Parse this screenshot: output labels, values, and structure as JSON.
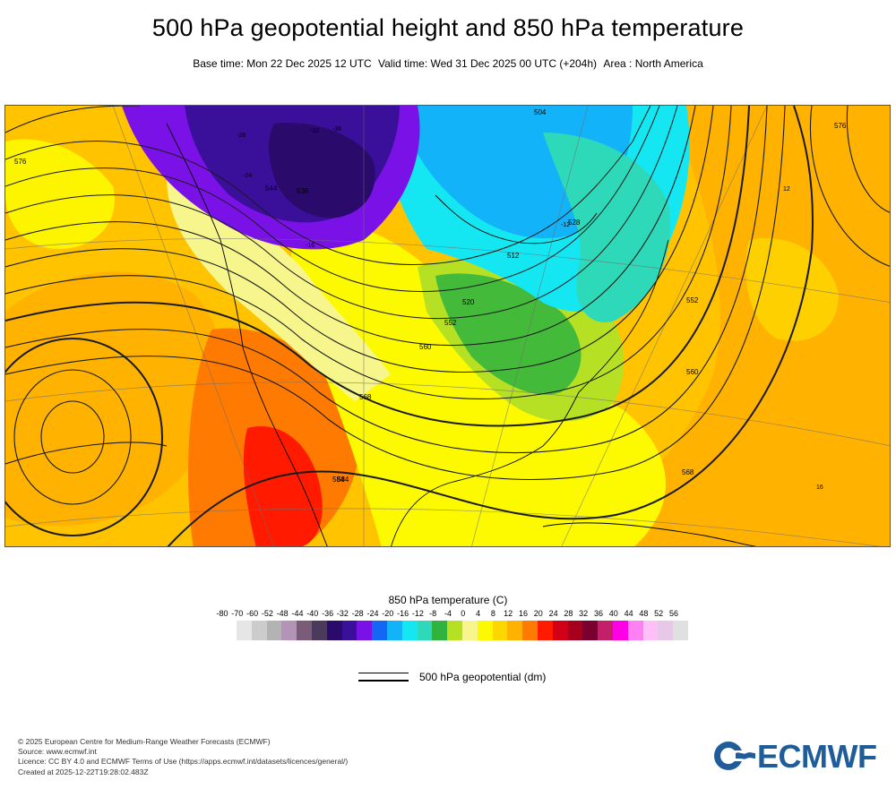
{
  "header": {
    "title": "500 hPa geopotential height and 850 hPa temperature",
    "base_time": "Base time: Mon 22 Dec 2025 12 UTC",
    "valid_time": "Valid time: Wed 31 Dec 2025 00 UTC (+204h)",
    "area": "Area : North America"
  },
  "legend": {
    "title": "850 hPa temperature (C)",
    "ticks": [
      "-80",
      "-70",
      "-60",
      "-52",
      "-48",
      "-44",
      "-40",
      "-36",
      "-32",
      "-28",
      "-24",
      "-20",
      "-16",
      "-12",
      "-8",
      "-4",
      "0",
      "4",
      "8",
      "12",
      "16",
      "20",
      "24",
      "28",
      "32",
      "36",
      "40",
      "44",
      "48",
      "52",
      "56"
    ],
    "colors": [
      "#e6e6e6",
      "#cccccc",
      "#b3b3b3",
      "#b294b7",
      "#7a5b78",
      "#4b3a5c",
      "#2a0a6b",
      "#3a0f9a",
      "#7a12e8",
      "#1466f5",
      "#12b3f8",
      "#14e6f2",
      "#2dd9b8",
      "#2fb33e",
      "#b6e024",
      "#f6f68c",
      "#fdfa00",
      "#ffd700",
      "#ffb300",
      "#ff7a00",
      "#ff1a00",
      "#d10016",
      "#a8001c",
      "#7a0030",
      "#c4206a",
      "#ff00e6",
      "#ff80f2",
      "#ffc0f8",
      "#e8c8e8",
      "#e0e0e0"
    ],
    "geopotential_label": "500 hPa geopotential (dm)"
  },
  "map": {
    "contour_labels": [
      "576",
      "584",
      "552",
      "560",
      "568",
      "504",
      "512",
      "520",
      "528",
      "536",
      "544",
      "552",
      "560",
      "568",
      "576",
      "584"
    ],
    "temp_labels": [
      "-32",
      "-36",
      "-28",
      "-24",
      "-16",
      "-12",
      "12",
      "16"
    ]
  },
  "footer": {
    "line1": "© 2025 European Centre for Medium-Range Weather Forecasts (ECMWF)",
    "line2": "Source: www.ecmwf.int",
    "line3": "Licence: CC BY 4.0 and ECMWF Terms of Use (https://apps.ecmwf.int/datasets/licences/general/)",
    "line4": "Created at 2025-12-22T19:28:02.483Z"
  },
  "logo": {
    "text": "ECMWF",
    "color": "#1f5c99"
  }
}
